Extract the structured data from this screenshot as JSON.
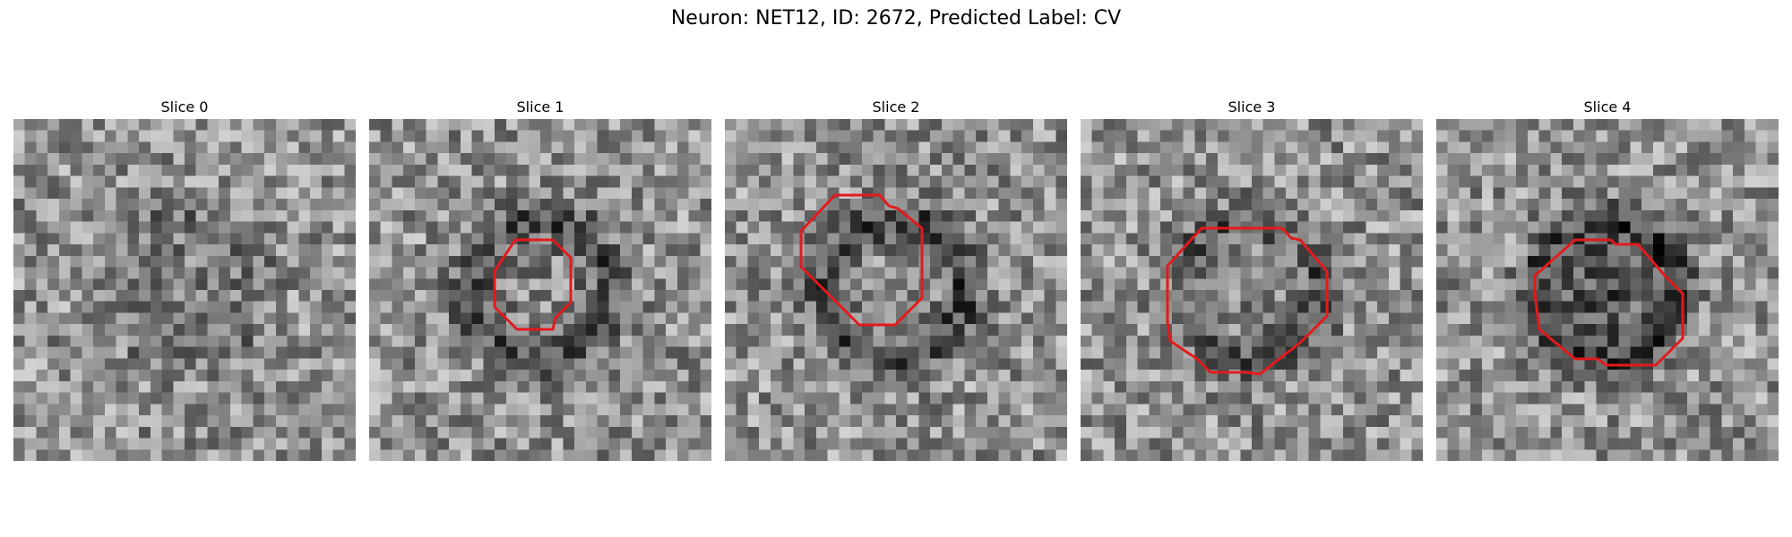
{
  "figure": {
    "title": "Neuron: NET12, ID: 2672, Predicted Label: CV"
  },
  "colors": {
    "contour": "#e31a1c",
    "background": "#ffffff"
  },
  "panels": [
    {
      "title": "Slice 0",
      "seed": 11,
      "center_dark": 0.08,
      "ring_dark": 0.12,
      "contour": false
    },
    {
      "title": "Slice 1",
      "seed": 22,
      "center_dark": 0.05,
      "ring_dark": 0.3,
      "contour": true
    },
    {
      "title": "Slice 2",
      "seed": 33,
      "center_dark": 0.0,
      "ring_dark": 0.32,
      "contour": true
    },
    {
      "title": "Slice 3",
      "seed": 44,
      "center_dark": 0.05,
      "ring_dark": 0.24,
      "contour": true
    },
    {
      "title": "Slice 4",
      "seed": 55,
      "center_dark": 0.3,
      "ring_dark": 0.3,
      "contour": true
    }
  ]
}
